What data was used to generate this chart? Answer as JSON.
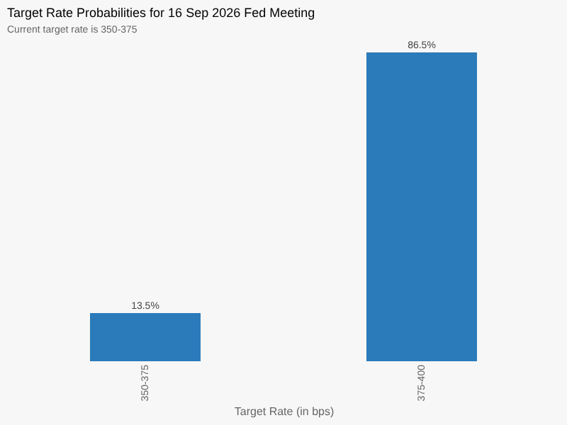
{
  "chart_data": {
    "type": "bar",
    "title": "Target Rate Probabilities for 16 Sep 2026 Fed Meeting",
    "subtitle": "Current target rate is 350-375",
    "xlabel": "Target Rate (in bps)",
    "categories": [
      "350-375",
      "375-400"
    ],
    "values": [
      13.5,
      86.5
    ],
    "value_labels": [
      "13.5%",
      "86.5%"
    ],
    "color": "#2b7bba",
    "tick_labels": "x",
    "grid": false
  }
}
